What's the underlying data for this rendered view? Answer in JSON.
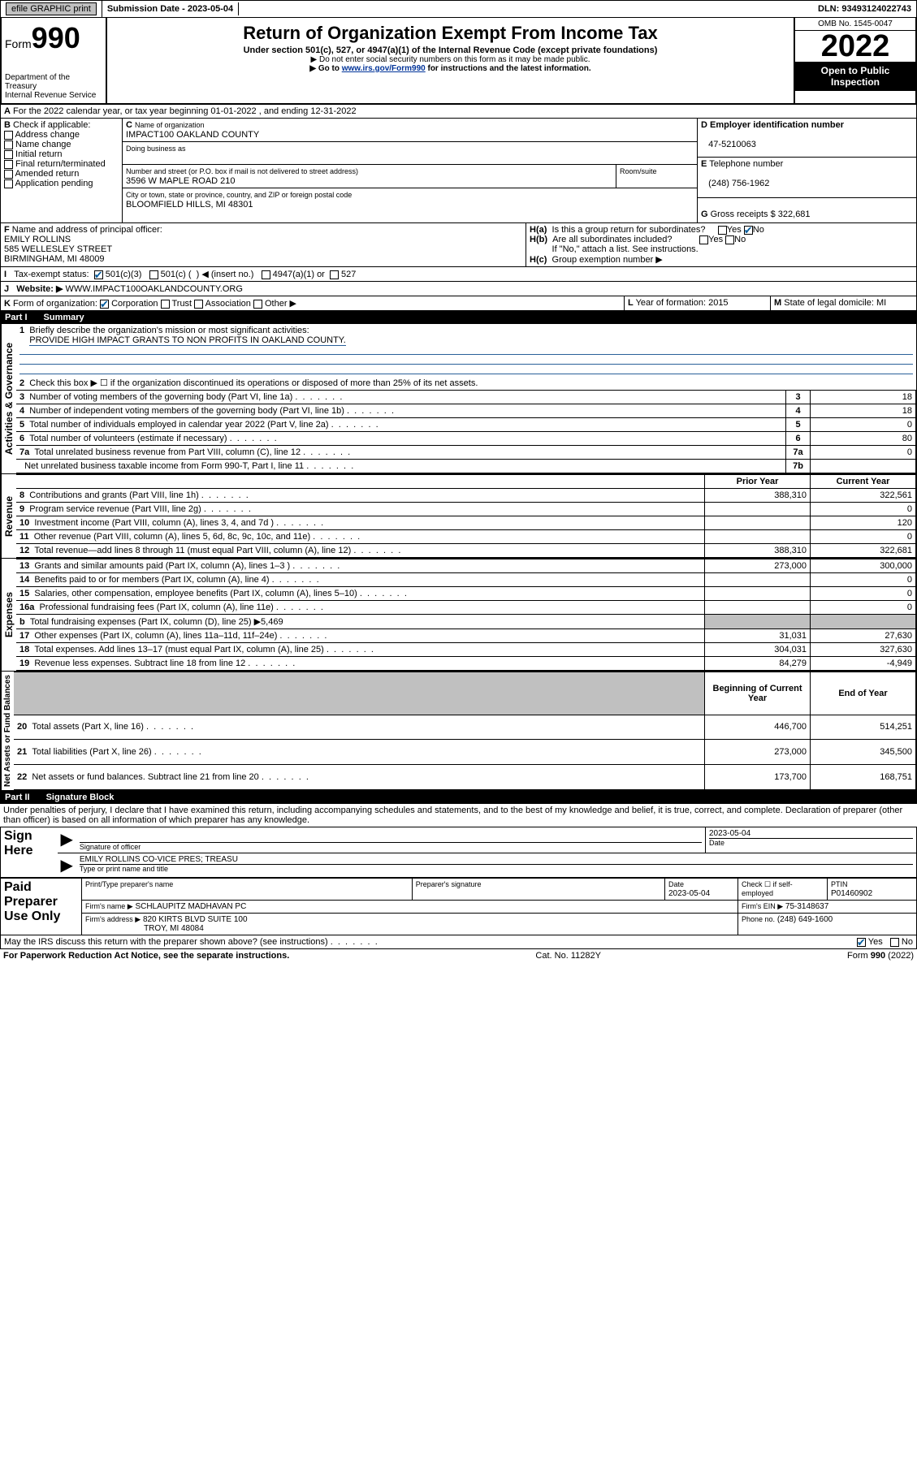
{
  "topbar": {
    "efile_label": "efile GRAPHIC print",
    "submission_label": "Submission Date - 2023-05-04",
    "dln_label": "DLN: 93493124022743"
  },
  "header": {
    "form_word": "Form",
    "form_number": "990",
    "dept": "Department of the Treasury",
    "irs": "Internal Revenue Service",
    "title": "Return of Organization Exempt From Income Tax",
    "subtitle": "Under section 501(c), 527, or 4947(a)(1) of the Internal Revenue Code (except private foundations)",
    "warn1": "▶ Do not enter social security numbers on this form as it may be made public.",
    "warn2_prefix": "▶ Go to ",
    "warn2_link": "www.irs.gov/Form990",
    "warn2_suffix": " for instructions and the latest information.",
    "omb": "OMB No. 1545-0047",
    "year": "2022",
    "open": "Open to Public Inspection"
  },
  "period": {
    "line": "For the 2022 calendar year, or tax year beginning 01-01-2022   , and ending 12-31-2022"
  },
  "boxB": {
    "label": "Check if applicable:",
    "items": [
      "Address change",
      "Name change",
      "Initial return",
      "Final return/terminated",
      "Amended return",
      "Application pending"
    ],
    "letter": "B"
  },
  "boxC": {
    "name_label": "Name of organization",
    "name": "IMPACT100 OAKLAND COUNTY",
    "dba_label": "Doing business as",
    "addr_label": "Number and street (or P.O. box if mail is not delivered to street address)",
    "room_label": "Room/suite",
    "addr": "3596 W MAPLE ROAD 210",
    "city_label": "City or town, state or province, country, and ZIP or foreign postal code",
    "city": "BLOOMFIELD HILLS, MI  48301",
    "letter": "C"
  },
  "boxD": {
    "letter": "D",
    "label": "Employer identification number",
    "value": "47-5210063"
  },
  "boxE": {
    "letter": "E",
    "label": "Telephone number",
    "value": "(248) 756-1962"
  },
  "boxG": {
    "letter": "G",
    "label": "Gross receipts $",
    "value": "322,681"
  },
  "boxF": {
    "letter": "F",
    "label": "Name and address of principal officer:",
    "name": "EMILY ROLLINS",
    "addr1": "585 WELLESLEY STREET",
    "addr2": "BIRMINGHAM, MI  48009"
  },
  "boxH": {
    "ha": "Is this a group return for subordinates?",
    "ha_no": true,
    "hb": "Are all subordinates included?",
    "hb_note": "If \"No,\" attach a list. See instructions.",
    "hc": "Group exemption number ▶"
  },
  "lineI": {
    "label": "Tax-exempt status:",
    "c501c3": true
  },
  "lineJ": {
    "label": "Website: ▶",
    "value": "WWW.IMPACT100OAKLANDCOUNTY.ORG"
  },
  "lineK": {
    "label": "Form of organization:",
    "corp": true
  },
  "lineL": {
    "label": "Year of formation:",
    "value": "2015"
  },
  "lineM": {
    "label": "State of legal domicile:",
    "value": "MI"
  },
  "part1": {
    "label": "Part I",
    "title": "Summary",
    "q1": "Briefly describe the organization's mission or most significant activities:",
    "q1_ans": "PROVIDE HIGH IMPACT GRANTS TO NON PROFITS IN OAKLAND COUNTY.",
    "q2": "Check this box ▶ ☐ if the organization discontinued its operations or disposed of more than 25% of its net assets.",
    "rows_gov": [
      {
        "n": "3",
        "t": "Number of voting members of the governing body (Part VI, line 1a)",
        "box": "3",
        "v": "18"
      },
      {
        "n": "4",
        "t": "Number of independent voting members of the governing body (Part VI, line 1b)",
        "box": "4",
        "v": "18"
      },
      {
        "n": "5",
        "t": "Total number of individuals employed in calendar year 2022 (Part V, line 2a)",
        "box": "5",
        "v": "0"
      },
      {
        "n": "6",
        "t": "Total number of volunteers (estimate if necessary)",
        "box": "6",
        "v": "80"
      },
      {
        "n": "7a",
        "t": "Total unrelated business revenue from Part VIII, column (C), line 12",
        "box": "7a",
        "v": "0"
      },
      {
        "n": "",
        "t": "Net unrelated business taxable income from Form 990-T, Part I, line 11",
        "box": "7b",
        "v": ""
      }
    ],
    "col_prior": "Prior Year",
    "col_curr": "Current Year",
    "rows_rev": [
      {
        "n": "8",
        "t": "Contributions and grants (Part VIII, line 1h)",
        "p": "388,310",
        "c": "322,561"
      },
      {
        "n": "9",
        "t": "Program service revenue (Part VIII, line 2g)",
        "p": "",
        "c": "0"
      },
      {
        "n": "10",
        "t": "Investment income (Part VIII, column (A), lines 3, 4, and 7d )",
        "p": "",
        "c": "120"
      },
      {
        "n": "11",
        "t": "Other revenue (Part VIII, column (A), lines 5, 6d, 8c, 9c, 10c, and 11e)",
        "p": "",
        "c": "0"
      },
      {
        "n": "12",
        "t": "Total revenue—add lines 8 through 11 (must equal Part VIII, column (A), line 12)",
        "p": "388,310",
        "c": "322,681"
      }
    ],
    "rows_exp": [
      {
        "n": "13",
        "t": "Grants and similar amounts paid (Part IX, column (A), lines 1–3 )",
        "p": "273,000",
        "c": "300,000"
      },
      {
        "n": "14",
        "t": "Benefits paid to or for members (Part IX, column (A), line 4)",
        "p": "",
        "c": "0"
      },
      {
        "n": "15",
        "t": "Salaries, other compensation, employee benefits (Part IX, column (A), lines 5–10)",
        "p": "",
        "c": "0"
      },
      {
        "n": "16a",
        "t": "Professional fundraising fees (Part IX, column (A), line 11e)",
        "p": "",
        "c": "0"
      },
      {
        "n": "b",
        "t": "Total fundraising expenses (Part IX, column (D), line 25) ▶5,469",
        "p": "grey",
        "c": "grey"
      },
      {
        "n": "17",
        "t": "Other expenses (Part IX, column (A), lines 11a–11d, 11f–24e)",
        "p": "31,031",
        "c": "27,630"
      },
      {
        "n": "18",
        "t": "Total expenses. Add lines 13–17 (must equal Part IX, column (A), line 25)",
        "p": "304,031",
        "c": "327,630"
      },
      {
        "n": "19",
        "t": "Revenue less expenses. Subtract line 18 from line 12",
        "p": "84,279",
        "c": "-4,949"
      }
    ],
    "col_beg": "Beginning of Current Year",
    "col_end": "End of Year",
    "rows_net": [
      {
        "n": "20",
        "t": "Total assets (Part X, line 16)",
        "p": "446,700",
        "c": "514,251"
      },
      {
        "n": "21",
        "t": "Total liabilities (Part X, line 26)",
        "p": "273,000",
        "c": "345,500"
      },
      {
        "n": "22",
        "t": "Net assets or fund balances. Subtract line 21 from line 20",
        "p": "173,700",
        "c": "168,751"
      }
    ],
    "vlabels": {
      "gov": "Activities & Governance",
      "rev": "Revenue",
      "exp": "Expenses",
      "net": "Net Assets or Fund Balances"
    }
  },
  "part2": {
    "label": "Part II",
    "title": "Signature Block",
    "perjury": "Under penalties of perjury, I declare that I have examined this return, including accompanying schedules and statements, and to the best of my knowledge and belief, it is true, correct, and complete. Declaration of preparer (other than officer) is based on all information of which preparer has any knowledge."
  },
  "sign": {
    "here": "Sign Here",
    "sig_officer": "Signature of officer",
    "date": "2023-05-04",
    "date_label": "Date",
    "officer_name": "EMILY ROLLINS  CO-VICE PRES; TREASU",
    "officer_name_label": "Type or print name and title"
  },
  "paid": {
    "label": "Paid Preparer Use Only",
    "col1": "Print/Type preparer's name",
    "col2": "Preparer's signature",
    "col3_label": "Date",
    "col3": "2023-05-04",
    "col4": "Check ☐ if self-employed",
    "col5_label": "PTIN",
    "col5": "P01460902",
    "firm_name_label": "Firm's name    ▶",
    "firm_name": "SCHLAUPITZ MADHAVAN PC",
    "firm_ein_label": "Firm's EIN ▶",
    "firm_ein": "75-3148637",
    "firm_addr_label": "Firm's address ▶",
    "firm_addr1": "820 KIRTS BLVD SUITE 100",
    "firm_addr2": "TROY, MI  48084",
    "phone_label": "Phone no.",
    "phone": "(248) 649-1600"
  },
  "bottom": {
    "discuss": "May the IRS discuss this return with the preparer shown above? (see instructions)",
    "yes": true,
    "paperwork": "For Paperwork Reduction Act Notice, see the separate instructions.",
    "cat": "Cat. No. 11282Y",
    "formno": "Form 990 (2022)"
  }
}
